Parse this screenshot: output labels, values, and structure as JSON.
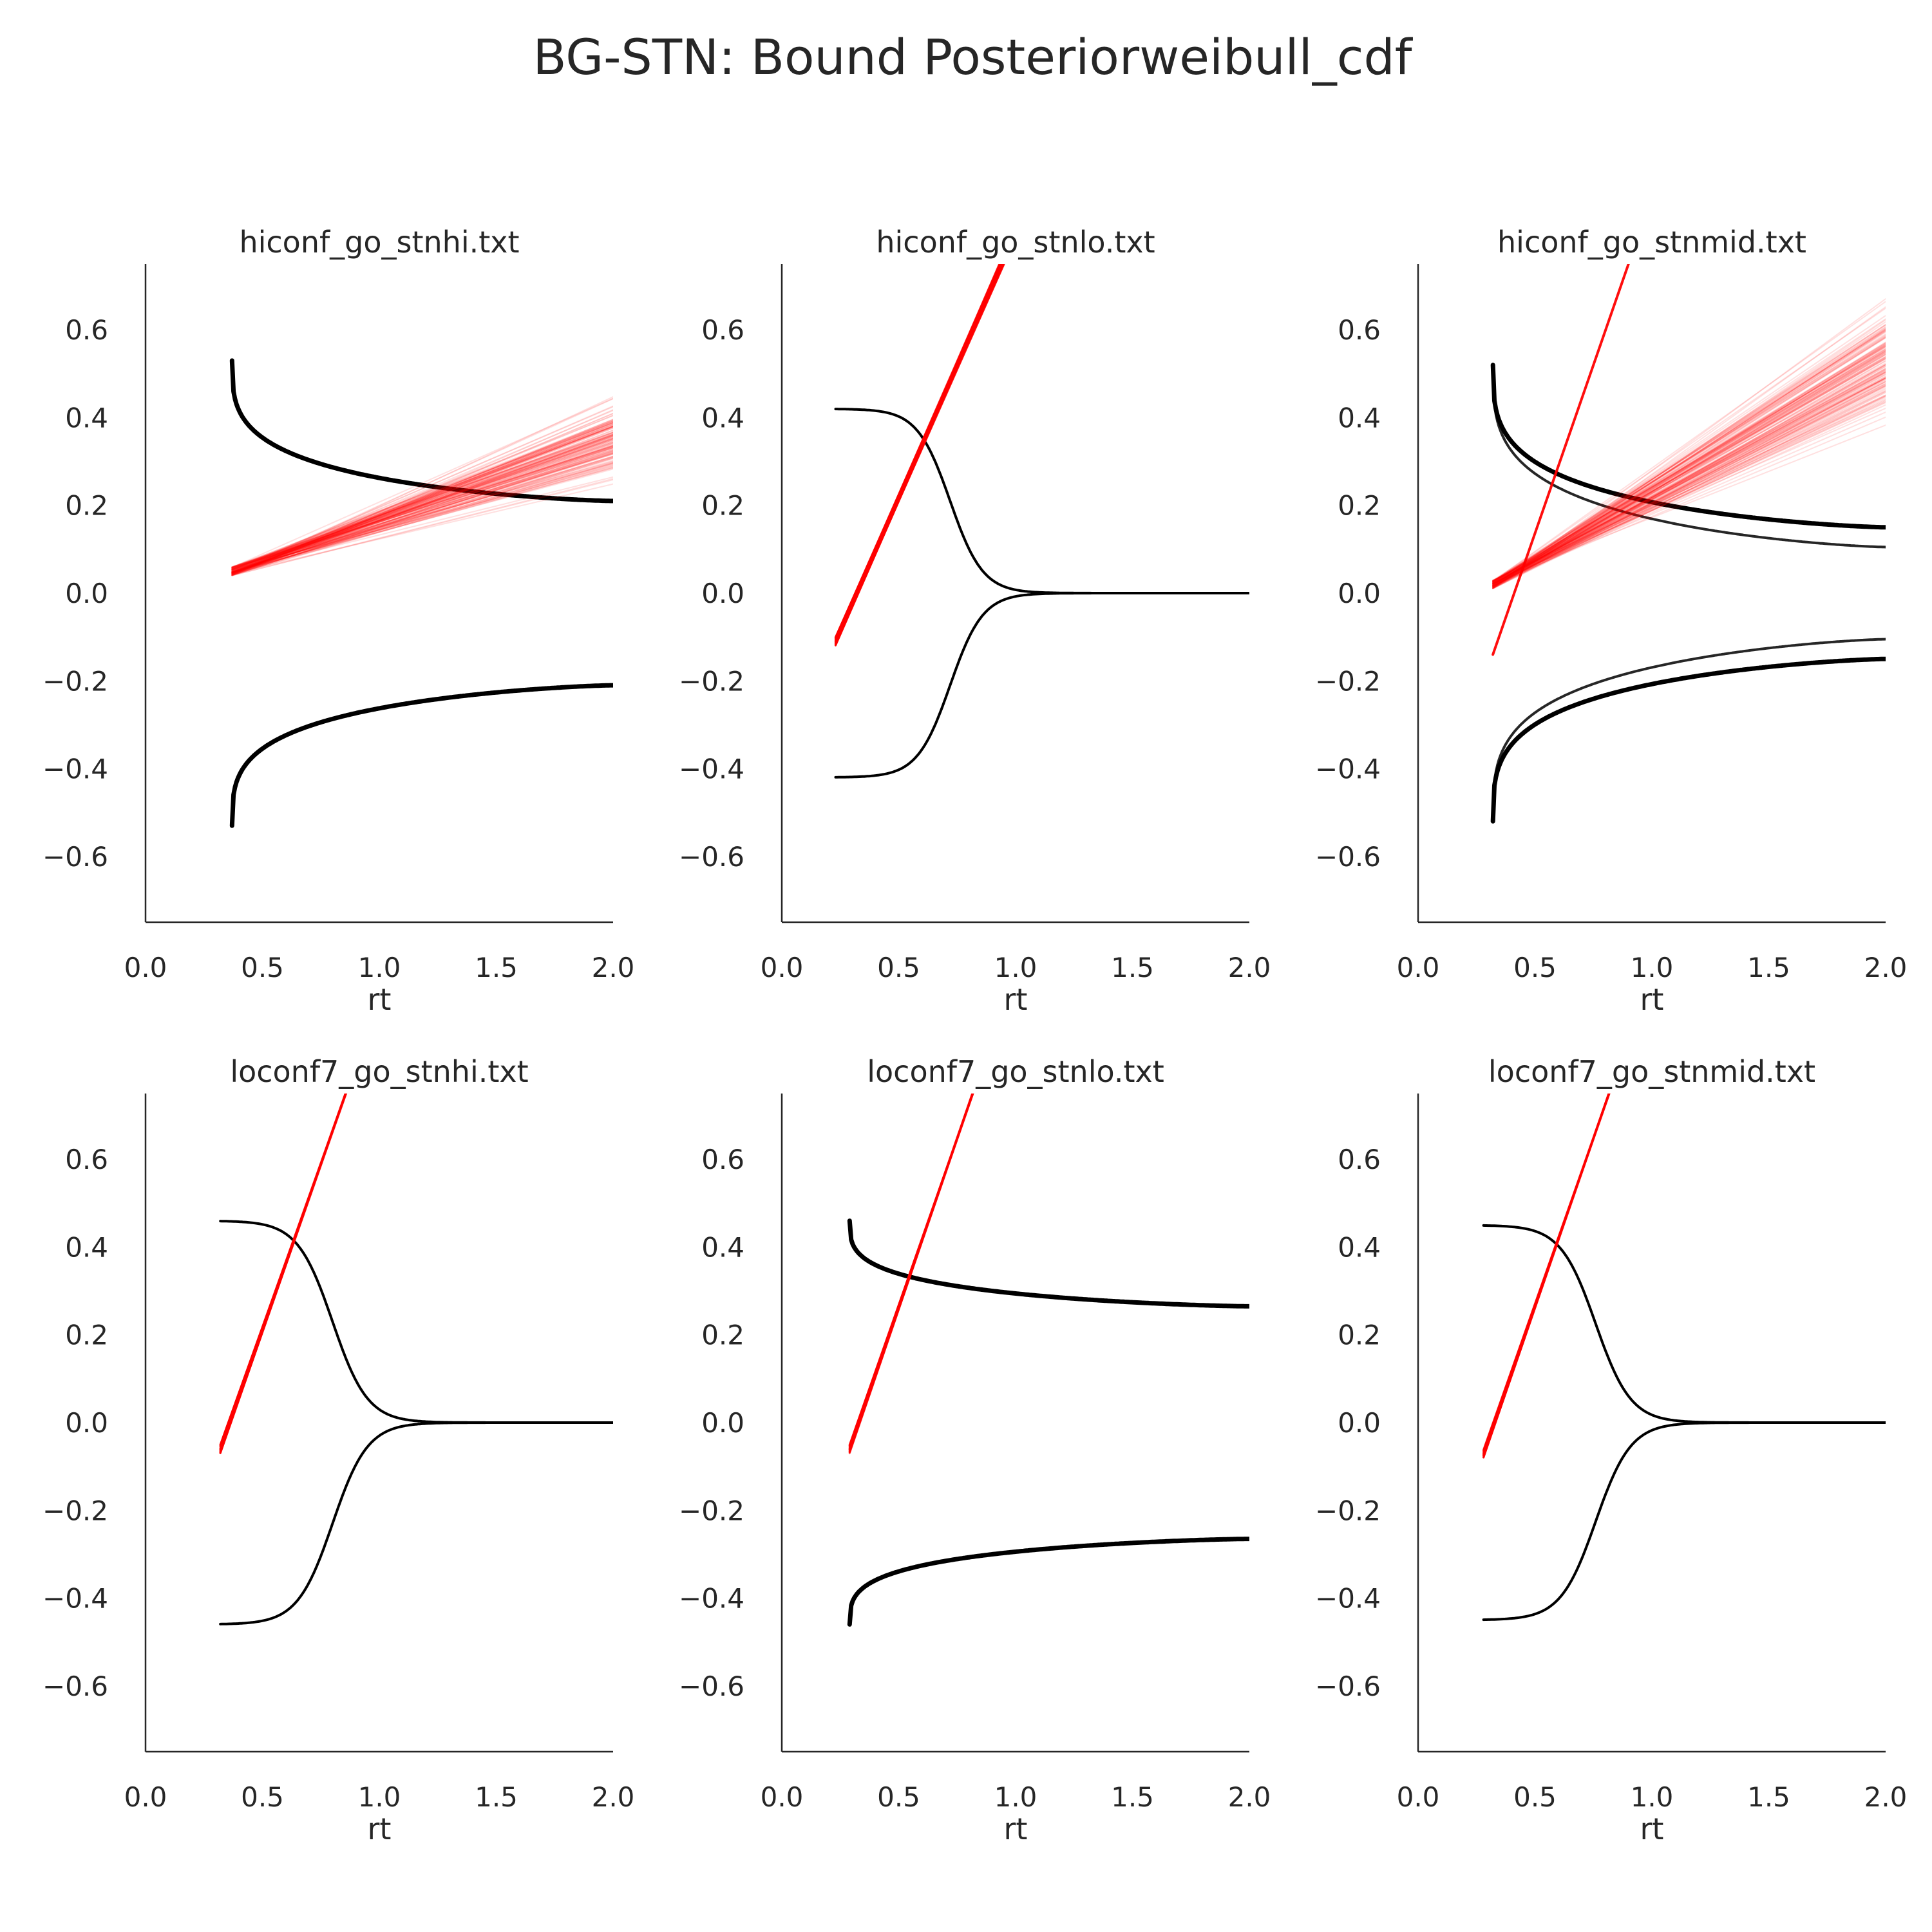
{
  "figure": {
    "suptitle": "BG-STN: Bound Posteriorweibull_cdf"
  },
  "chart_data": [
    {
      "type": "line",
      "title": "hiconf_go_stnhi.txt",
      "xlabel": "rt",
      "ylabel": "",
      "xlim": [
        0.0,
        2.0
      ],
      "ylim": [
        -0.75,
        0.75
      ],
      "xticks": [
        "0.0",
        "0.5",
        "1.0",
        "1.5",
        "2.0"
      ],
      "yticks": [
        "0.6",
        "0.4",
        "0.2",
        "0.0",
        "−0.2",
        "−0.4",
        "−0.6"
      ],
      "ytick_values": [
        0.6,
        0.4,
        0.2,
        0.0,
        -0.2,
        -0.4,
        -0.6
      ],
      "bound": {
        "shape": "power",
        "t0": 0.37,
        "a": 0.53,
        "end_value": 0.21,
        "variants": [
          0.0
        ]
      },
      "trajectories": {
        "t0": 0.37,
        "start": 0.05,
        "end_x": 2.0,
        "end_min": 0.22,
        "end_max": 0.47,
        "count": 140
      },
      "colors": {
        "bound": "#000000",
        "trajectory": "#ff0000"
      }
    },
    {
      "type": "line",
      "title": "hiconf_go_stnlo.txt",
      "xlabel": "rt",
      "ylabel": "",
      "xlim": [
        0.0,
        2.0
      ],
      "ylim": [
        -0.75,
        0.75
      ],
      "xticks": [
        "0.0",
        "0.5",
        "1.0",
        "1.5",
        "2.0"
      ],
      "yticks": [
        "0.6",
        "0.4",
        "0.2",
        "0.0",
        "−0.2",
        "−0.4",
        "−0.6"
      ],
      "ytick_values": [
        0.6,
        0.4,
        0.2,
        0.0,
        -0.2,
        -0.4,
        -0.6
      ],
      "bound": {
        "shape": "sigmoid",
        "t0": 0.23,
        "a": 0.42,
        "mid": 0.72,
        "width": 0.07
      },
      "trajectories": {
        "t0": 0.23,
        "start": -0.11,
        "end_x": 0.95,
        "end_min": 0.74,
        "end_max": 0.78,
        "count": 60
      },
      "colors": {
        "bound": "#000000",
        "trajectory": "#ff0000"
      }
    },
    {
      "type": "line",
      "title": "hiconf_go_stnmid.txt",
      "xlabel": "rt",
      "ylabel": "",
      "xlim": [
        0.0,
        2.0
      ],
      "ylim": [
        -0.75,
        0.75
      ],
      "xticks": [
        "0.0",
        "0.5",
        "1.0",
        "1.5",
        "2.0"
      ],
      "yticks": [
        "0.6",
        "0.4",
        "0.2",
        "0.0",
        "−0.2",
        "−0.4",
        "−0.6"
      ],
      "ytick_values": [
        0.6,
        0.4,
        0.2,
        0.0,
        -0.2,
        -0.4,
        -0.6
      ],
      "bound": {
        "shape": "power",
        "t0": 0.32,
        "a": 0.52,
        "end_value": 0.15,
        "variants": [
          0.0,
          -0.045
        ]
      },
      "trajectories": {
        "t0": 0.32,
        "start": 0.02,
        "end_x": 2.0,
        "end_min": 0.34,
        "end_max": 0.72,
        "count": 140
      },
      "outlier": {
        "x": [
          0.32,
          0.9
        ],
        "y": [
          -0.14,
          0.75
        ]
      },
      "colors": {
        "bound": "#000000",
        "trajectory": "#ff0000"
      }
    },
    {
      "type": "line",
      "title": "loconf7_go_stnhi.txt",
      "xlabel": "rt",
      "ylabel": "",
      "xlim": [
        0.0,
        2.0
      ],
      "ylim": [
        -0.75,
        0.75
      ],
      "xticks": [
        "0.0",
        "0.5",
        "1.0",
        "1.5",
        "2.0"
      ],
      "yticks": [
        "0.6",
        "0.4",
        "0.2",
        "0.0",
        "−0.2",
        "−0.4",
        "−0.6"
      ],
      "ytick_values": [
        0.6,
        0.4,
        0.2,
        0.0,
        -0.2,
        -0.4,
        -0.6
      ],
      "bound": {
        "shape": "sigmoid",
        "t0": 0.32,
        "a": 0.46,
        "mid": 0.8,
        "width": 0.075
      },
      "trajectories": {
        "t0": 0.32,
        "start": -0.06,
        "end_x": 0.86,
        "end_min": 0.75,
        "end_max": 0.76,
        "count": 30
      },
      "colors": {
        "bound": "#000000",
        "trajectory": "#ff0000"
      }
    },
    {
      "type": "line",
      "title": "loconf7_go_stnlo.txt",
      "xlabel": "rt",
      "ylabel": "",
      "xlim": [
        0.0,
        2.0
      ],
      "ylim": [
        -0.75,
        0.75
      ],
      "xticks": [
        "0.0",
        "0.5",
        "1.0",
        "1.5",
        "2.0"
      ],
      "yticks": [
        "0.6",
        "0.4",
        "0.2",
        "0.0",
        "−0.2",
        "−0.4",
        "−0.6"
      ],
      "ytick_values": [
        0.6,
        0.4,
        0.2,
        0.0,
        -0.2,
        -0.4,
        -0.6
      ],
      "bound": {
        "shape": "power",
        "t0": 0.29,
        "a": 0.46,
        "end_value": 0.265,
        "variants": [
          0.0
        ]
      },
      "trajectories": {
        "t0": 0.29,
        "start": -0.06,
        "end_x": 0.82,
        "end_min": 0.75,
        "end_max": 0.76,
        "count": 30
      },
      "colors": {
        "bound": "#000000",
        "trajectory": "#ff0000"
      }
    },
    {
      "type": "line",
      "title": "loconf7_go_stnmid.txt",
      "xlabel": "rt",
      "ylabel": "",
      "xlim": [
        0.0,
        2.0
      ],
      "ylim": [
        -0.75,
        0.75
      ],
      "xticks": [
        "0.0",
        "0.5",
        "1.0",
        "1.5",
        "2.0"
      ],
      "yticks": [
        "0.6",
        "0.4",
        "0.2",
        "0.0",
        "−0.2",
        "−0.4",
        "−0.6"
      ],
      "ytick_values": [
        0.6,
        0.4,
        0.2,
        0.0,
        -0.2,
        -0.4,
        -0.6
      ],
      "bound": {
        "shape": "sigmoid",
        "t0": 0.28,
        "a": 0.45,
        "mid": 0.76,
        "width": 0.075
      },
      "trajectories": {
        "t0": 0.28,
        "start": -0.07,
        "end_x": 0.82,
        "end_min": 0.75,
        "end_max": 0.76,
        "count": 30
      },
      "colors": {
        "bound": "#000000",
        "trajectory": "#ff0000"
      }
    }
  ]
}
